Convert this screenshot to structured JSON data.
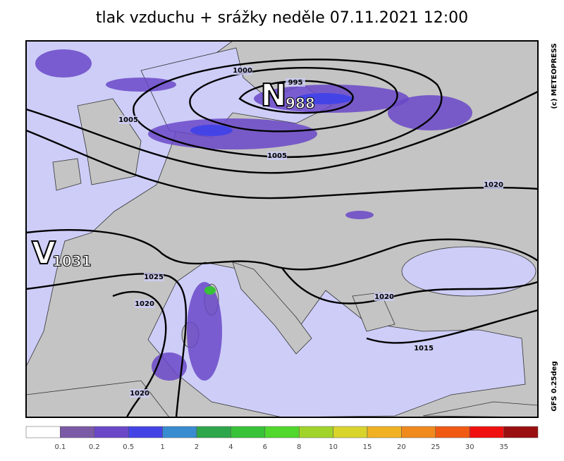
{
  "title": "tlak vzduchu + srážky  neděle 07.11.2021 12:00",
  "credit": "(c) METEOPRESS",
  "model": "GFS 0.25deg",
  "pressure_centers": [
    {
      "letter": "N",
      "value": "988"
    },
    {
      "letter": "V",
      "value": "1031"
    }
  ],
  "isobar_labels": [
    "1000",
    "995",
    "1005",
    "1005",
    "1020",
    "1025",
    "1020",
    "1020",
    "1015",
    "1020"
  ],
  "legend": {
    "labels": [
      "0.1",
      "0.2",
      "0.5",
      "1",
      "2",
      "4",
      "6",
      "8",
      "10",
      "15",
      "20",
      "25",
      "30",
      "35"
    ],
    "colors": [
      "#ffffff",
      "#7b5aa6",
      "#6a48c8",
      "#4444e6",
      "#3a8cd0",
      "#2ea64a",
      "#38c238",
      "#50d82c",
      "#a0d42a",
      "#d8d42c",
      "#f0b224",
      "#f08a1c",
      "#f05a12",
      "#f01010",
      "#9a1010"
    ]
  }
}
